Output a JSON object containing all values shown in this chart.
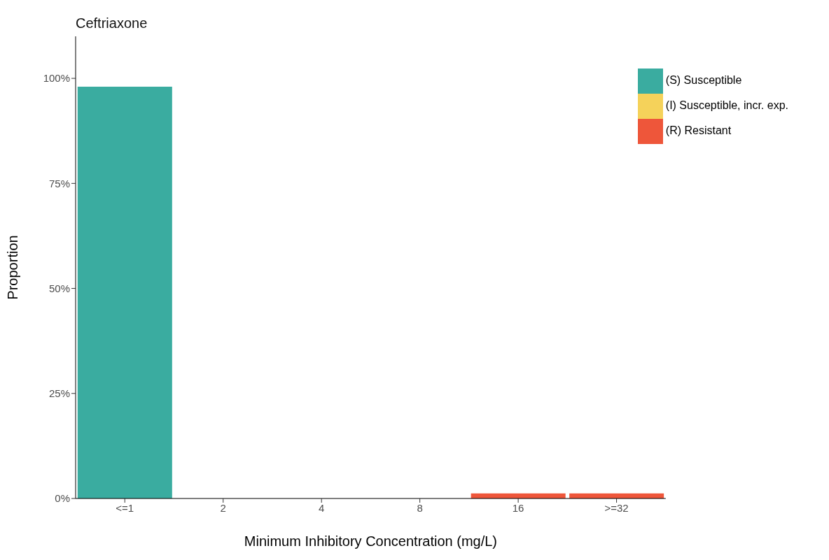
{
  "chart_data": {
    "type": "bar",
    "title": "Ceftriaxone",
    "xlabel": "Minimum Inhibitory Concentration (mg/L)",
    "ylabel": "Proportion",
    "categories": [
      "<=1",
      "2",
      "4",
      "8",
      "16",
      ">=32"
    ],
    "series": [
      {
        "name": "(S) Susceptible",
        "color": "#3aaca0",
        "values": [
          98,
          null,
          null,
          null,
          null,
          null
        ]
      },
      {
        "name": "(I) Susceptible, incr. exp.",
        "color": "#f5d25a",
        "values": [
          null,
          null,
          null,
          null,
          null,
          null
        ]
      },
      {
        "name": "(R) Resistant",
        "color": "#ee563a",
        "values": [
          null,
          null,
          null,
          null,
          1.2,
          1.2
        ]
      }
    ],
    "stacked": true,
    "ylim": [
      0,
      110
    ],
    "yticks": [
      {
        "value": 0,
        "label": "0%"
      },
      {
        "value": 25,
        "label": "25%"
      },
      {
        "value": 50,
        "label": "50%"
      },
      {
        "value": 75,
        "label": "75%"
      },
      {
        "value": 100,
        "label": "100%"
      }
    ],
    "grid": false,
    "legend": "top right"
  }
}
